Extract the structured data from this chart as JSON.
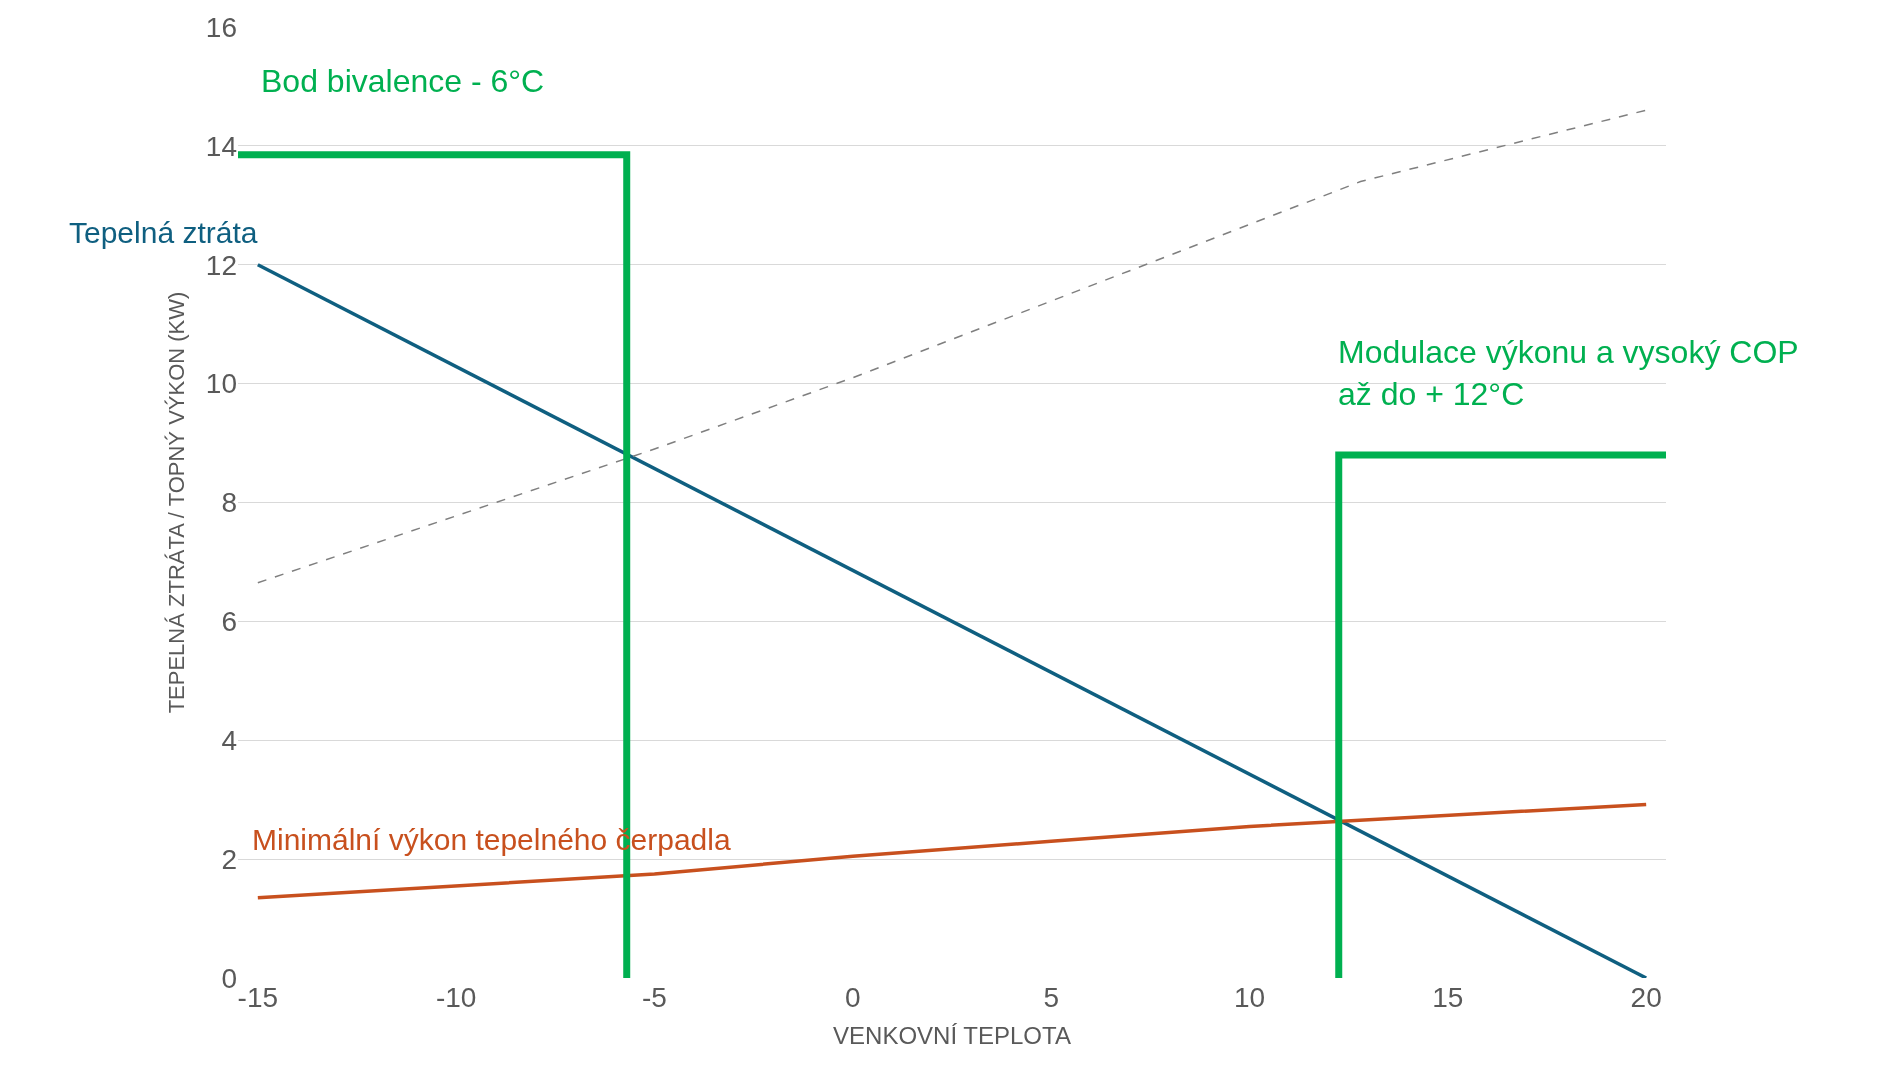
{
  "chart_data": {
    "type": "line",
    "xlabel": "VENKOVNÍ TEPLOTA",
    "ylabel": "TEPELNÁ ZTRÁTA / TOPNÝ VÝKON (KW)",
    "xlim": [
      -15.5,
      20.5
    ],
    "xticks": [
      -15,
      -10,
      -5,
      0,
      5,
      10,
      15,
      20
    ],
    "ylim": [
      0,
      16
    ],
    "yticks": [
      0,
      2,
      4,
      6,
      8,
      10,
      12,
      14,
      16
    ],
    "grid": "y",
    "legend": false,
    "annotations": [
      "Bod bivalence - 6°C",
      "Modulace výkonu a vysoký COP$_{}$až do + 12°C"
    ],
    "series": [
      {
        "name": "Tepelná ztráta",
        "color": "#0f5f80",
        "x": [
          -15,
          20
        ],
        "values": [
          12,
          0
        ]
      },
      {
        "name": "Minimální výkon tepelného čerpadla",
        "color": "#c8501e",
        "x": [
          -15,
          -5,
          0,
          5,
          10,
          20
        ],
        "values": [
          1.35,
          1.75,
          2.05,
          2.3,
          2.55,
          2.92
        ]
      },
      {
        "color": "#7f7f7f",
        "line_style": "dashed",
        "x": [
          -15,
          -5,
          0,
          12.8,
          20
        ],
        "values": [
          6.65,
          8.9,
          10.1,
          13.4,
          14.6
        ]
      },
      {
        "color": "#00b050",
        "x": [
          -5.7,
          -5.7,
          -15.5
        ],
        "values": [
          0,
          13.85,
          13.85
        ]
      },
      {
        "color": "#00b050",
        "x": [
          12.25,
          12.25,
          20.5
        ],
        "values": [
          0,
          8.8,
          8.8
        ]
      }
    ]
  }
}
